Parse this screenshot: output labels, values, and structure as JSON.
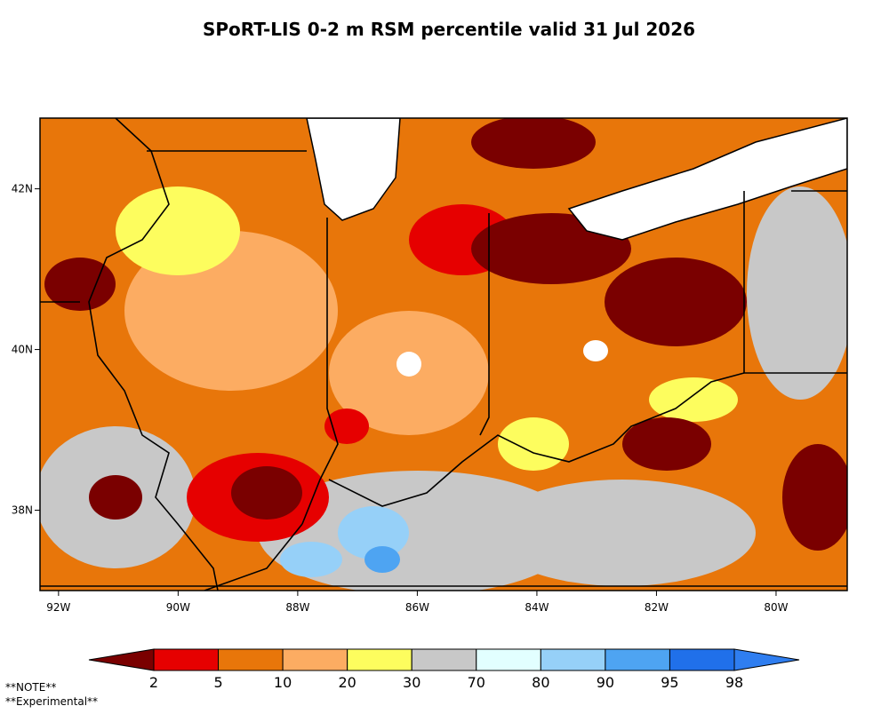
{
  "chart_data": {
    "type": "map",
    "title": "SPoRT-LIS 0-2 m RSM percentile valid 31 Jul 2026",
    "xlim": [
      -92.31,
      -78.81
    ],
    "ylim": [
      37.0,
      42.88
    ],
    "xticks": [
      {
        "value": -92,
        "label": "92W"
      },
      {
        "value": -90,
        "label": "90W"
      },
      {
        "value": -88,
        "label": "88W"
      },
      {
        "value": -86,
        "label": "86W"
      },
      {
        "value": -84,
        "label": "84W"
      },
      {
        "value": -82,
        "label": "82W"
      },
      {
        "value": -80,
        "label": "80W"
      }
    ],
    "yticks": [
      {
        "value": 38,
        "label": "38N"
      },
      {
        "value": 40,
        "label": "40N"
      },
      {
        "value": 42,
        "label": "42N"
      }
    ],
    "colorbar": {
      "ticks": [
        2,
        5,
        10,
        20,
        30,
        70,
        80,
        90,
        95,
        98
      ],
      "colors": [
        "#7a0000",
        "#e60000",
        "#e8760a",
        "#fcac62",
        "#fdfd5e",
        "#c8c8c8",
        "#e2ffff",
        "#96d0f8",
        "#4ea4f2",
        "#2070ea",
        "#2f7ef0"
      ]
    },
    "notes": [
      "**NOTE**",
      "**Experimental**"
    ]
  }
}
